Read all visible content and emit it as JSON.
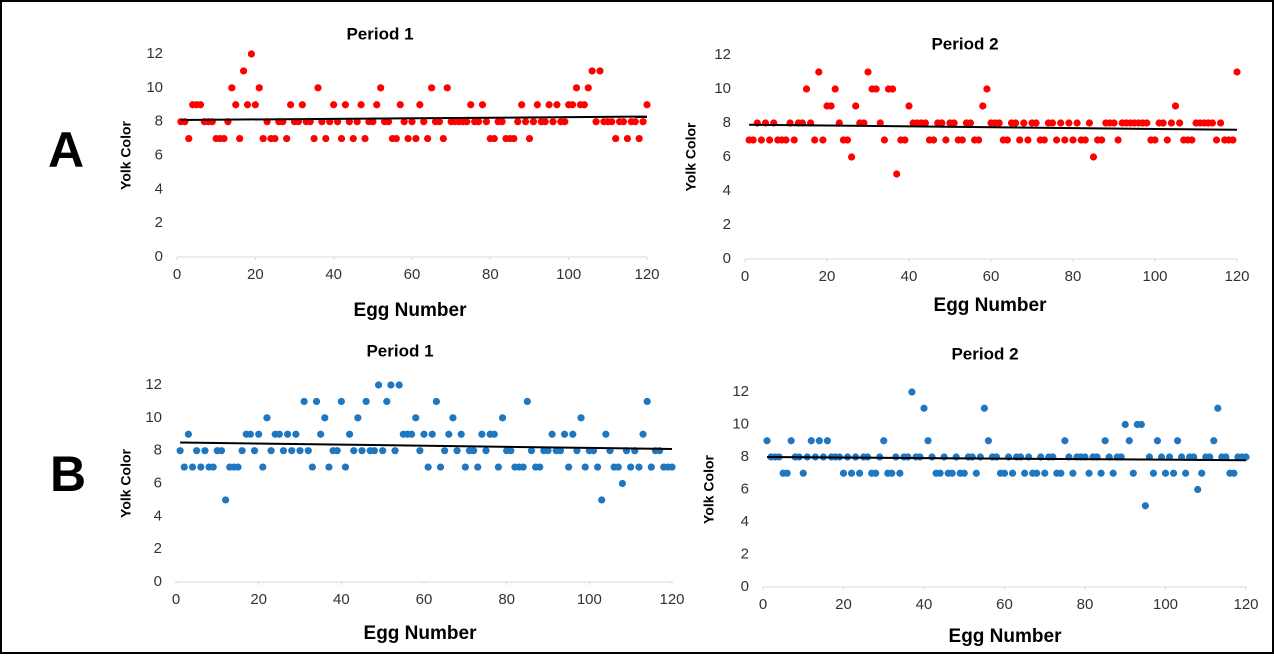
{
  "panels": [
    {
      "label": "A"
    },
    {
      "label": "B"
    }
  ],
  "chart_data": [
    {
      "type": "scatter",
      "title": "Period 1",
      "xlabel": "Egg Number",
      "ylabel": "Yolk Color",
      "color": "#ff0000",
      "x": [
        1,
        2,
        3,
        4,
        5,
        6,
        7,
        8,
        9,
        10,
        11,
        12,
        13,
        14,
        15,
        16,
        17,
        18,
        19,
        20,
        21,
        22,
        23,
        24,
        25,
        26,
        27,
        28,
        29,
        30,
        31,
        32,
        33,
        34,
        35,
        36,
        37,
        38,
        39,
        40,
        41,
        42,
        43,
        44,
        45,
        46,
        47,
        48,
        49,
        50,
        51,
        52,
        53,
        54,
        55,
        56,
        57,
        58,
        59,
        60,
        61,
        62,
        63,
        64,
        65,
        66,
        67,
        68,
        69,
        70,
        71,
        72,
        73,
        74,
        75,
        76,
        77,
        78,
        79,
        80,
        81,
        82,
        83,
        84,
        85,
        86,
        87,
        88,
        89,
        90,
        91,
        92,
        93,
        94,
        95,
        96,
        97,
        98,
        99,
        100,
        101,
        102,
        103,
        104,
        105,
        106,
        107,
        108,
        109,
        110,
        111,
        112,
        113,
        114,
        115,
        116,
        117,
        118,
        119,
        120
      ],
      "values": [
        8,
        8,
        7,
        9,
        9,
        9,
        8,
        8,
        8,
        7,
        7,
        7,
        8,
        10,
        9,
        7,
        11,
        9,
        12,
        9,
        10,
        7,
        8,
        7,
        7,
        8,
        8,
        7,
        9,
        8,
        8,
        9,
        8,
        8,
        7,
        10,
        8,
        7,
        8,
        9,
        8,
        7,
        9,
        8,
        7,
        8,
        9,
        7,
        8,
        8,
        9,
        10,
        8,
        8,
        7,
        7,
        9,
        8,
        7,
        8,
        7,
        9,
        8,
        7,
        10,
        8,
        8,
        7,
        10,
        8,
        8,
        8,
        8,
        8,
        9,
        8,
        8,
        9,
        8,
        7,
        7,
        8,
        8,
        7,
        7,
        7,
        8,
        9,
        8,
        7,
        8,
        9,
        8,
        8,
        9,
        8,
        9,
        8,
        8,
        9,
        9,
        10,
        9,
        9,
        10,
        11,
        8,
        11,
        8,
        8,
        8,
        7,
        8,
        8,
        7,
        8,
        8,
        7,
        8,
        9
      ],
      "trendline": {
        "x": [
          1,
          120
        ],
        "values": [
          8.1,
          8.3
        ]
      },
      "xlim": [
        0,
        120
      ],
      "xticks": [
        0,
        20,
        40,
        60,
        80,
        100,
        120
      ],
      "ylim": [
        0,
        12
      ],
      "yticks": [
        0,
        2,
        4,
        6,
        8,
        10,
        12
      ]
    },
    {
      "type": "scatter",
      "title": "Period 2",
      "xlabel": "Egg Number",
      "ylabel": "Yolk Color",
      "color": "#ff0000",
      "x": [
        1,
        2,
        3,
        4,
        5,
        6,
        7,
        8,
        9,
        10,
        11,
        12,
        13,
        14,
        15,
        16,
        17,
        18,
        19,
        20,
        21,
        22,
        23,
        24,
        25,
        26,
        27,
        28,
        29,
        30,
        31,
        32,
        33,
        34,
        35,
        36,
        37,
        38,
        39,
        40,
        41,
        42,
        43,
        44,
        45,
        46,
        47,
        48,
        49,
        50,
        51,
        52,
        53,
        54,
        55,
        56,
        57,
        58,
        59,
        60,
        61,
        62,
        63,
        64,
        65,
        66,
        67,
        68,
        69,
        70,
        71,
        72,
        73,
        74,
        75,
        76,
        77,
        78,
        79,
        80,
        81,
        82,
        83,
        84,
        85,
        86,
        87,
        88,
        89,
        90,
        91,
        92,
        93,
        94,
        95,
        96,
        97,
        98,
        99,
        100,
        101,
        102,
        103,
        104,
        105,
        106,
        107,
        108,
        109,
        110,
        111,
        112,
        113,
        114,
        115,
        116,
        117,
        118,
        119,
        120
      ],
      "values": [
        7,
        7,
        8,
        7,
        8,
        7,
        8,
        7,
        7,
        7,
        8,
        7,
        8,
        8,
        10,
        8,
        7,
        11,
        7,
        9,
        9,
        10,
        8,
        7,
        7,
        6,
        9,
        8,
        8,
        11,
        10,
        10,
        8,
        7,
        10,
        10,
        5,
        7,
        7,
        9,
        8,
        8,
        8,
        8,
        7,
        7,
        8,
        8,
        7,
        8,
        8,
        7,
        7,
        8,
        8,
        7,
        7,
        9,
        10,
        8,
        8,
        8,
        7,
        7,
        8,
        8,
        7,
        8,
        7,
        8,
        8,
        7,
        7,
        8,
        8,
        7,
        8,
        7,
        8,
        7,
        8,
        7,
        7,
        8,
        6,
        7,
        7,
        8,
        8,
        8,
        7,
        8,
        8,
        8,
        8,
        8,
        8,
        8,
        7,
        7,
        8,
        8,
        7,
        8,
        9,
        8,
        7,
        7,
        7,
        8,
        8,
        8,
        8,
        8,
        7,
        8,
        7,
        7,
        7,
        11
      ],
      "trendline": {
        "x": [
          1,
          120
        ],
        "values": [
          7.9,
          7.6
        ]
      },
      "xlim": [
        0,
        120
      ],
      "xticks": [
        0,
        20,
        40,
        60,
        80,
        100,
        120
      ],
      "ylim": [
        0,
        12
      ],
      "yticks": [
        0,
        2,
        4,
        6,
        8,
        10,
        12
      ]
    },
    {
      "type": "scatter",
      "title": "Period 1",
      "xlabel": "Egg Number",
      "ylabel": "Yolk Color",
      "color": "#1f77c0",
      "x": [
        1,
        2,
        3,
        4,
        5,
        6,
        7,
        8,
        9,
        10,
        11,
        12,
        13,
        14,
        15,
        16,
        17,
        18,
        19,
        20,
        21,
        22,
        23,
        24,
        25,
        26,
        27,
        28,
        29,
        30,
        31,
        32,
        33,
        34,
        35,
        36,
        37,
        38,
        39,
        40,
        41,
        42,
        43,
        44,
        45,
        46,
        47,
        48,
        49,
        50,
        51,
        52,
        53,
        54,
        55,
        56,
        57,
        58,
        59,
        60,
        61,
        62,
        63,
        64,
        65,
        66,
        67,
        68,
        69,
        70,
        71,
        72,
        73,
        74,
        75,
        76,
        77,
        78,
        79,
        80,
        81,
        82,
        83,
        84,
        85,
        86,
        87,
        88,
        89,
        90,
        91,
        92,
        93,
        94,
        95,
        96,
        97,
        98,
        99,
        100,
        101,
        102,
        103,
        104,
        105,
        106,
        107,
        108,
        109,
        110,
        111,
        112,
        113,
        114,
        115,
        116,
        117,
        118,
        119,
        120
      ],
      "values": [
        8,
        7,
        9,
        7,
        8,
        7,
        8,
        7,
        7,
        8,
        8,
        5,
        7,
        7,
        7,
        8,
        9,
        9,
        8,
        9,
        7,
        10,
        8,
        9,
        9,
        8,
        9,
        8,
        9,
        8,
        11,
        8,
        7,
        11,
        9,
        10,
        7,
        8,
        8,
        11,
        7,
        9,
        8,
        10,
        8,
        11,
        8,
        8,
        12,
        8,
        11,
        12,
        8,
        12,
        9,
        9,
        9,
        10,
        8,
        9,
        7,
        9,
        11,
        7,
        8,
        9,
        10,
        8,
        9,
        7,
        8,
        8,
        7,
        9,
        8,
        9,
        9,
        7,
        10,
        8,
        8,
        7,
        7,
        7,
        11,
        8,
        7,
        7,
        8,
        8,
        9,
        8,
        8,
        9,
        7,
        9,
        8,
        10,
        7,
        8,
        8,
        7,
        5,
        9,
        8,
        7,
        7,
        6,
        8,
        7,
        8,
        7,
        9,
        11,
        7,
        8,
        8,
        7,
        7,
        7
      ],
      "trendline": {
        "x": [
          1,
          120
        ],
        "values": [
          8.5,
          8.1
        ]
      },
      "xlim": [
        0,
        120
      ],
      "xticks": [
        0,
        20,
        40,
        60,
        80,
        100,
        120
      ],
      "ylim": [
        0,
        12
      ],
      "yticks": [
        0,
        2,
        4,
        6,
        8,
        10,
        12
      ]
    },
    {
      "type": "scatter",
      "title": "Period 2",
      "xlabel": "Egg Number",
      "ylabel": "Yolk Color",
      "color": "#1f77c0",
      "x": [
        1,
        2,
        3,
        4,
        5,
        6,
        7,
        8,
        9,
        10,
        11,
        12,
        13,
        14,
        15,
        16,
        17,
        18,
        19,
        20,
        21,
        22,
        23,
        24,
        25,
        26,
        27,
        28,
        29,
        30,
        31,
        32,
        33,
        34,
        35,
        36,
        37,
        38,
        39,
        40,
        41,
        42,
        43,
        44,
        45,
        46,
        47,
        48,
        49,
        50,
        51,
        52,
        53,
        54,
        55,
        56,
        57,
        58,
        59,
        60,
        61,
        62,
        63,
        64,
        65,
        66,
        67,
        68,
        69,
        70,
        71,
        72,
        73,
        74,
        75,
        76,
        77,
        78,
        79,
        80,
        81,
        82,
        83,
        84,
        85,
        86,
        87,
        88,
        89,
        90,
        91,
        92,
        93,
        94,
        95,
        96,
        97,
        98,
        99,
        100,
        101,
        102,
        103,
        104,
        105,
        106,
        107,
        108,
        109,
        110,
        111,
        112,
        113,
        114,
        115,
        116,
        117,
        118,
        119,
        120
      ],
      "values": [
        9,
        8,
        8,
        8,
        7,
        7,
        9,
        8,
        8,
        7,
        8,
        9,
        8,
        9,
        8,
        9,
        8,
        8,
        8,
        7,
        8,
        7,
        8,
        7,
        8,
        8,
        7,
        7,
        8,
        9,
        7,
        7,
        8,
        7,
        8,
        8,
        12,
        8,
        8,
        11,
        9,
        8,
        7,
        7,
        8,
        7,
        7,
        8,
        7,
        7,
        8,
        8,
        7,
        8,
        11,
        9,
        8,
        8,
        7,
        7,
        8,
        7,
        8,
        8,
        7,
        8,
        7,
        7,
        8,
        7,
        8,
        8,
        7,
        7,
        9,
        8,
        7,
        8,
        8,
        8,
        7,
        8,
        8,
        7,
        9,
        8,
        7,
        8,
        8,
        10,
        9,
        7,
        10,
        10,
        5,
        8,
        7,
        9,
        8,
        7,
        8,
        7,
        9,
        8,
        7,
        8,
        8,
        6,
        7,
        8,
        8,
        9,
        11,
        8,
        8,
        7,
        7,
        8,
        8,
        8
      ],
      "trendline": {
        "x": [
          1,
          120
        ],
        "values": [
          8.0,
          7.8
        ]
      },
      "xlim": [
        0,
        120
      ],
      "xticks": [
        0,
        20,
        40,
        60,
        80,
        100,
        120
      ],
      "ylim": [
        0,
        12
      ],
      "yticks": [
        0,
        2,
        4,
        6,
        8,
        10,
        12
      ]
    }
  ]
}
